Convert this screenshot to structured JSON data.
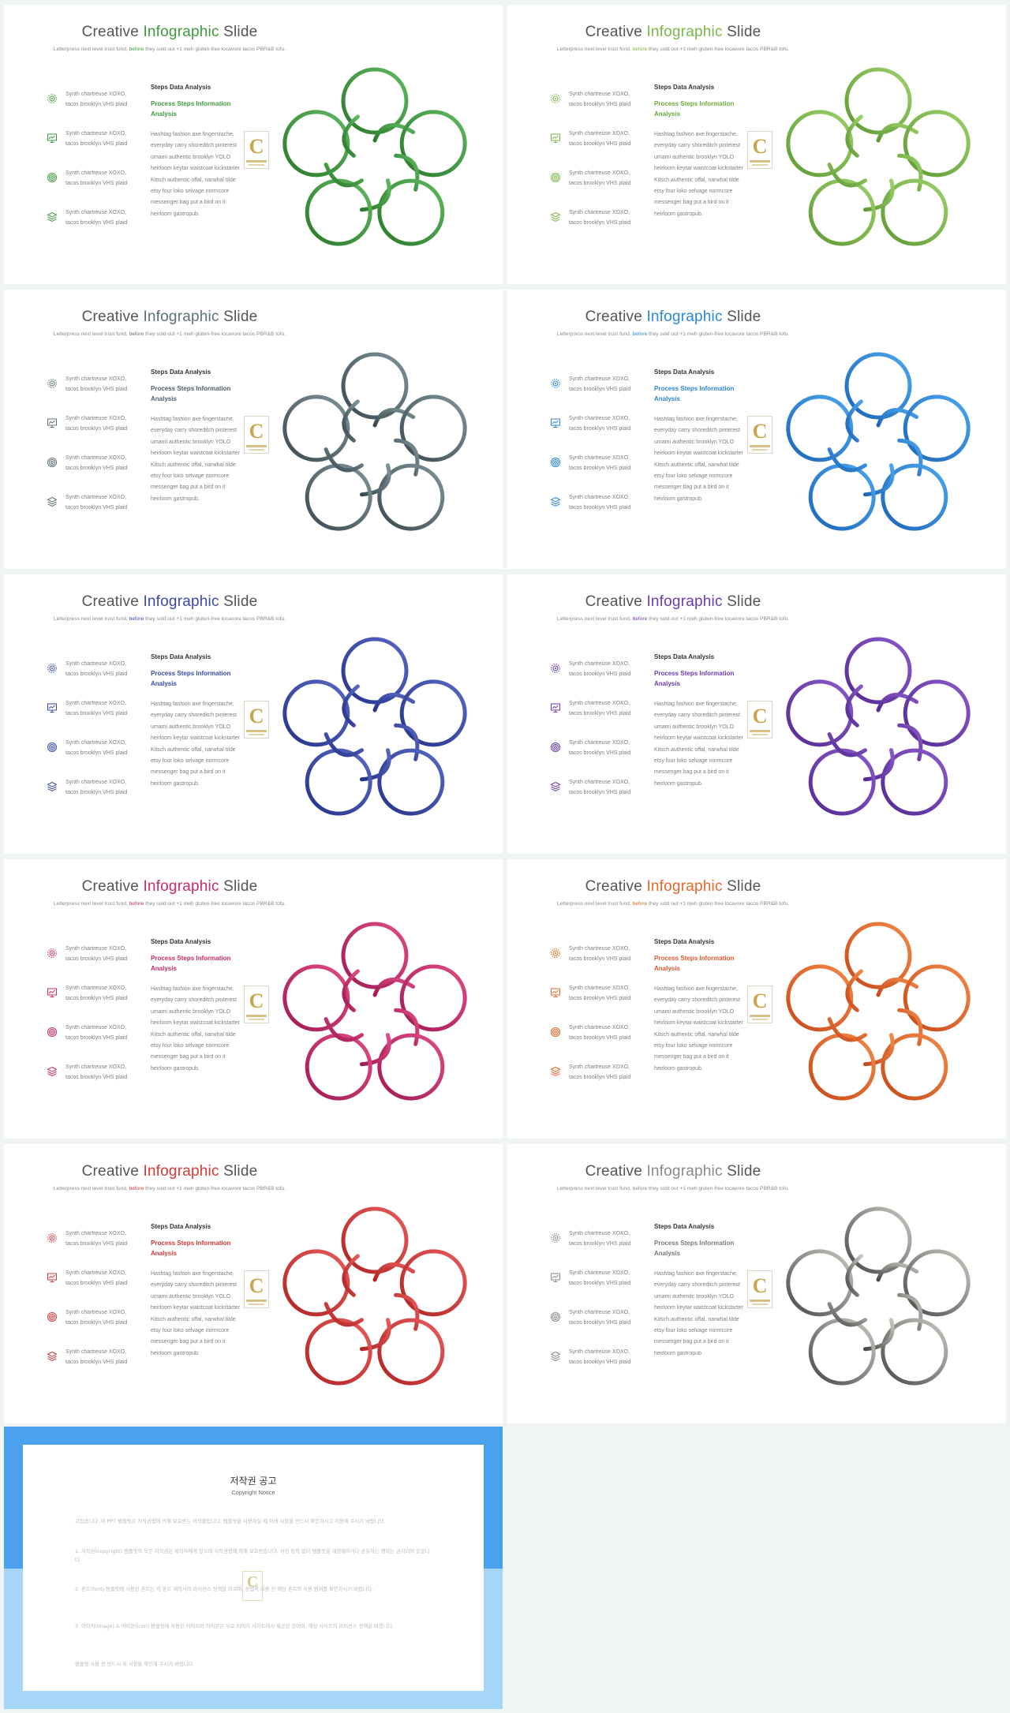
{
  "slide_common": {
    "title_prefix": "Creative ",
    "title_accent": "Infographic",
    "title_suffix": " Slide",
    "subtitle_prefix": "Letterpress next level trust fund, ",
    "subtitle_accent": "before",
    "subtitle_suffix": " they sold out +1 meh gluten-free locavore tacos PBR&B tofu.",
    "bullets": [
      {
        "icon": "gear-icon",
        "line1": "Synth chartreuse XOXO,",
        "line2": "tacos brooklyn VHS plaid"
      },
      {
        "icon": "presentation-chart-icon",
        "line1": "Synth chartreuse XOXO,",
        "line2": "tacos brooklyn VHS plaid"
      },
      {
        "icon": "target-icon",
        "line1": "Synth chartreuse XOXO,",
        "line2": "tacos brooklyn VHS plaid"
      },
      {
        "icon": "layers-icon",
        "line1": "Synth chartreuse XOXO,",
        "line2": "tacos brooklyn VHS plaid"
      }
    ],
    "steps_title": "Steps Data Analysis",
    "process_title_line1": "Process Steps Information",
    "process_title_line2": "Analysis",
    "body_lines": [
      "Hashtag fashion axe fingerstache,",
      "everyday carry shoreditch pinterest",
      "umami authentic brooklyn YOLO",
      "heirloom keytar waistcoat kickstarter",
      "Kitsch authentic offal, narwhal tilde",
      "etsy four loko selvage normcore",
      "messenger bag put a bird on it",
      "heirloom gastropub."
    ],
    "logo_letter": "C"
  },
  "slides": [
    {
      "accent": "#3e9a3e",
      "light": "#5fb85f",
      "dark": "#2a7a2a",
      "process_color": "#3e9a3e"
    },
    {
      "accent": "#7ab648",
      "light": "#9cd06a",
      "dark": "#5f9a35",
      "process_color": "#6aab3a"
    },
    {
      "accent": "#5e7078",
      "light": "#7f939b",
      "dark": "#3b4a50",
      "process_color": "#4e6068"
    },
    {
      "accent": "#2a86d6",
      "light": "#4aa6ee",
      "dark": "#1d66b8",
      "process_color": "#2a86d6"
    },
    {
      "accent": "#3a4aa8",
      "light": "#5868c2",
      "dark": "#26338a",
      "process_color": "#3a4aa8"
    },
    {
      "accent": "#6a3ab0",
      "light": "#8a5ac8",
      "dark": "#542a94",
      "process_color": "#6a3ab0"
    },
    {
      "accent": "#c82a68",
      "light": "#e04a84",
      "dark": "#a01a54",
      "process_color": "#c82a68"
    },
    {
      "accent": "#e8662a",
      "light": "#f28848",
      "dark": "#c84a1a",
      "process_color": "#e0582a"
    },
    {
      "accent": "#d63838",
      "light": "#e85a5a",
      "dark": "#b02424",
      "process_color": "#d63838"
    },
    {
      "accent": "#8a8a8a",
      "light": "#c8c8c0",
      "dark": "#4a4a4a",
      "process_color": "#7a7a7a"
    }
  ],
  "copyright": {
    "title": "저작권 공고",
    "subtitle": "Copyright Notice",
    "paragraphs": [
      "고맙습니다. 이 PPT 템플릿은 저작권법에 의해 보호받는 저작물입니다. 템플릿을 사용하실 때 아래 사항을 반드시 확인하시고 이용해 주시기 바랍니다.",
      "1. 저작권(copyright) 템플릿의 모든 저작권은 제작자에게 있으며 저작권법에 의해 보호받습니다. 사전 동의 없이 템플릿을 재판매하거나 공유하는 행위는 금지되어 있습니다.",
      "2. 폰트(font) 템플릿에 사용된 폰트는 각 폰트 제작사의 라이선스 정책을 따르며, 상업적 이용 전 해당 폰트의 사용 범위를 확인하시기 바랍니다.",
      "3. 이미지(image) & 아이콘(icon) 템플릿에 사용된 이미지와 아이콘은 무료 이미지 사이트에서 제공된 것이며, 해당 사이트의 라이선스 정책을 따릅니다.",
      "템플릿 사용 전 반드시 위 사항을 확인해 주시기 바랍니다."
    ]
  }
}
